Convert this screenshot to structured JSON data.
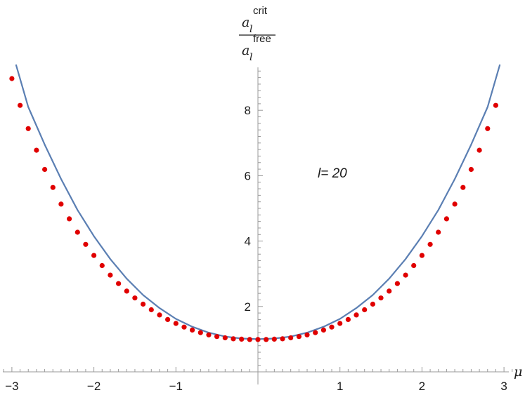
{
  "chart_data": {
    "type": "line",
    "xlabel": "μ",
    "ylabel": {
      "numerator_base": "a",
      "numerator_sub": "l",
      "numerator_sup": "crit",
      "denominator_base": "a",
      "denominator_sub": "l",
      "denominator_sup": "free"
    },
    "annotation": "l= 20",
    "xlim": [
      -3.1,
      3.1
    ],
    "ylim": [
      0,
      9.4
    ],
    "xticks": [
      -3,
      -2,
      -1,
      1,
      2,
      3
    ],
    "xtick_labels": [
      "−3",
      "−2",
      "−1",
      "1",
      "2",
      "3"
    ],
    "yticks": [
      2,
      4,
      6,
      8
    ],
    "ytick_labels": [
      "2",
      "4",
      "6",
      "8"
    ],
    "curve_color": "#5b7fb3",
    "dot_color": "#e00000",
    "series": [
      {
        "style": "line",
        "x": [
          -2.95,
          -2.8,
          -2.6,
          -2.4,
          -2.2,
          -2.0,
          -1.8,
          -1.6,
          -1.4,
          -1.2,
          -1.0,
          -0.8,
          -0.6,
          -0.4,
          -0.2,
          0.0,
          0.2,
          0.4,
          0.6,
          0.8,
          1.0,
          1.2,
          1.4,
          1.6,
          1.8,
          2.0,
          2.2,
          2.4,
          2.6,
          2.8,
          2.95
        ],
        "y": [
          9.4,
          8.1,
          6.95,
          5.9,
          4.95,
          4.15,
          3.45,
          2.85,
          2.35,
          1.95,
          1.62,
          1.38,
          1.2,
          1.08,
          1.02,
          1.0,
          1.02,
          1.08,
          1.2,
          1.38,
          1.62,
          1.95,
          2.35,
          2.85,
          3.45,
          4.15,
          4.95,
          5.9,
          6.95,
          8.1,
          9.4
        ]
      },
      {
        "style": "scatter",
        "x": [
          -3.0,
          -2.9,
          -2.8,
          -2.7,
          -2.6,
          -2.5,
          -2.4,
          -2.3,
          -2.2,
          -2.1,
          -2.0,
          -1.9,
          -1.8,
          -1.7,
          -1.6,
          -1.5,
          -1.4,
          -1.3,
          -1.2,
          -1.1,
          -1.0,
          -0.9,
          -0.8,
          -0.7,
          -0.6,
          -0.5,
          -0.4,
          -0.3,
          -0.2,
          -0.1,
          0.0,
          0.1,
          0.2,
          0.3,
          0.4,
          0.5,
          0.6,
          0.7,
          0.8,
          0.9,
          1.0,
          1.1,
          1.2,
          1.3,
          1.4,
          1.5,
          1.6,
          1.7,
          1.8,
          1.9,
          2.0,
          2.1,
          2.2,
          2.3,
          2.4,
          2.5,
          2.6,
          2.7,
          2.8,
          2.9
        ],
        "y": [
          8.97,
          8.15,
          7.44,
          6.78,
          6.19,
          5.64,
          5.13,
          4.68,
          4.27,
          3.9,
          3.56,
          3.25,
          2.96,
          2.7,
          2.47,
          2.26,
          2.07,
          1.9,
          1.74,
          1.6,
          1.48,
          1.37,
          1.28,
          1.2,
          1.13,
          1.08,
          1.04,
          1.01,
          1.0,
          0.99,
          0.99,
          0.99,
          1.0,
          1.01,
          1.04,
          1.08,
          1.13,
          1.2,
          1.28,
          1.37,
          1.48,
          1.6,
          1.74,
          1.9,
          2.07,
          2.26,
          2.47,
          2.7,
          2.96,
          3.25,
          3.56,
          3.9,
          4.27,
          4.68,
          5.13,
          5.64,
          6.19,
          6.78,
          7.44,
          8.15
        ]
      }
    ]
  }
}
